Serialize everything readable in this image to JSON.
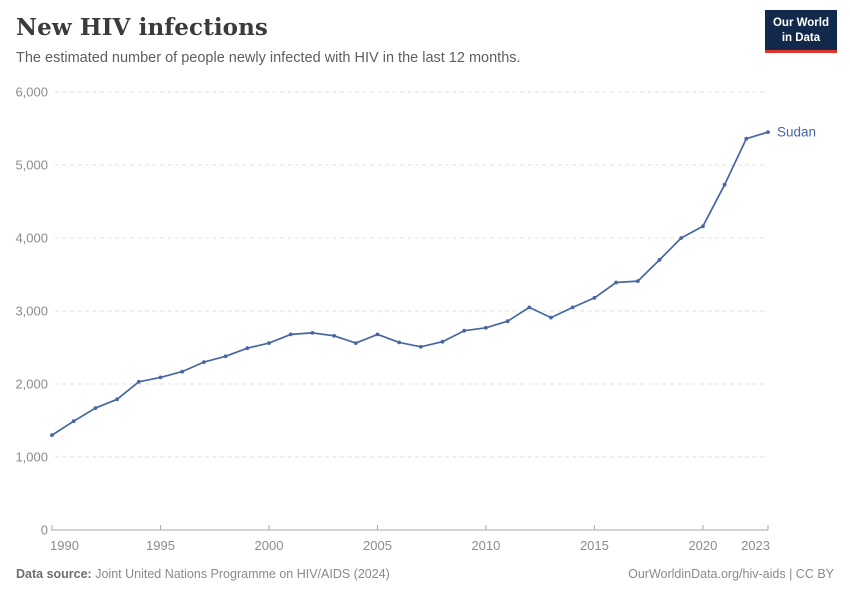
{
  "header": {
    "title": "New HIV infections",
    "subtitle": "The estimated number of people newly infected with HIV in the last 12 months.",
    "logo_line1": "Our World",
    "logo_line2": "in Data",
    "logo_bg_color": "#12294b",
    "logo_accent_color": "#dc352c"
  },
  "chart_data": {
    "type": "line",
    "title": "New HIV infections",
    "xlabel": "",
    "ylabel": "",
    "ylim": [
      0,
      6000
    ],
    "grid": "horizontal-dashed",
    "legend_position": "end-of-line-label",
    "x": [
      1990,
      1991,
      1992,
      1993,
      1994,
      1995,
      1996,
      1997,
      1998,
      1999,
      2000,
      2001,
      2002,
      2003,
      2004,
      2005,
      2006,
      2007,
      2008,
      2009,
      2010,
      2011,
      2012,
      2013,
      2014,
      2015,
      2016,
      2017,
      2018,
      2019,
      2020,
      2021,
      2022,
      2023
    ],
    "series": [
      {
        "name": "Sudan",
        "color": "#4766a4",
        "values": [
          1300,
          1490,
          1670,
          1790,
          2030,
          2090,
          2170,
          2300,
          2380,
          2490,
          2560,
          2680,
          2700,
          2660,
          2560,
          2680,
          2570,
          2510,
          2580,
          2730,
          2770,
          2860,
          3050,
          2910,
          3050,
          3180,
          3390,
          3410,
          3700,
          4000,
          4160,
          4730,
          5360,
          5450
        ]
      }
    ],
    "xticks": [
      1990,
      1995,
      2000,
      2005,
      2010,
      2015,
      2020,
      2023
    ],
    "yticks": [
      0,
      1000,
      2000,
      3000,
      4000,
      5000,
      6000
    ],
    "ytick_labels": [
      "0",
      "1,000",
      "2,000",
      "3,000",
      "4,000",
      "5,000",
      "6,000"
    ],
    "axis_color": "#a8a8a8",
    "gridline_color": "#e2e2e2",
    "tick_label_color": "#8c8c8c"
  },
  "footer": {
    "datasource_label": "Data source:",
    "datasource_text": "Joint United Nations Programme on HIV/AIDS (2024)",
    "rights": "OurWorldinData.org/hiv-aids | CC BY"
  }
}
